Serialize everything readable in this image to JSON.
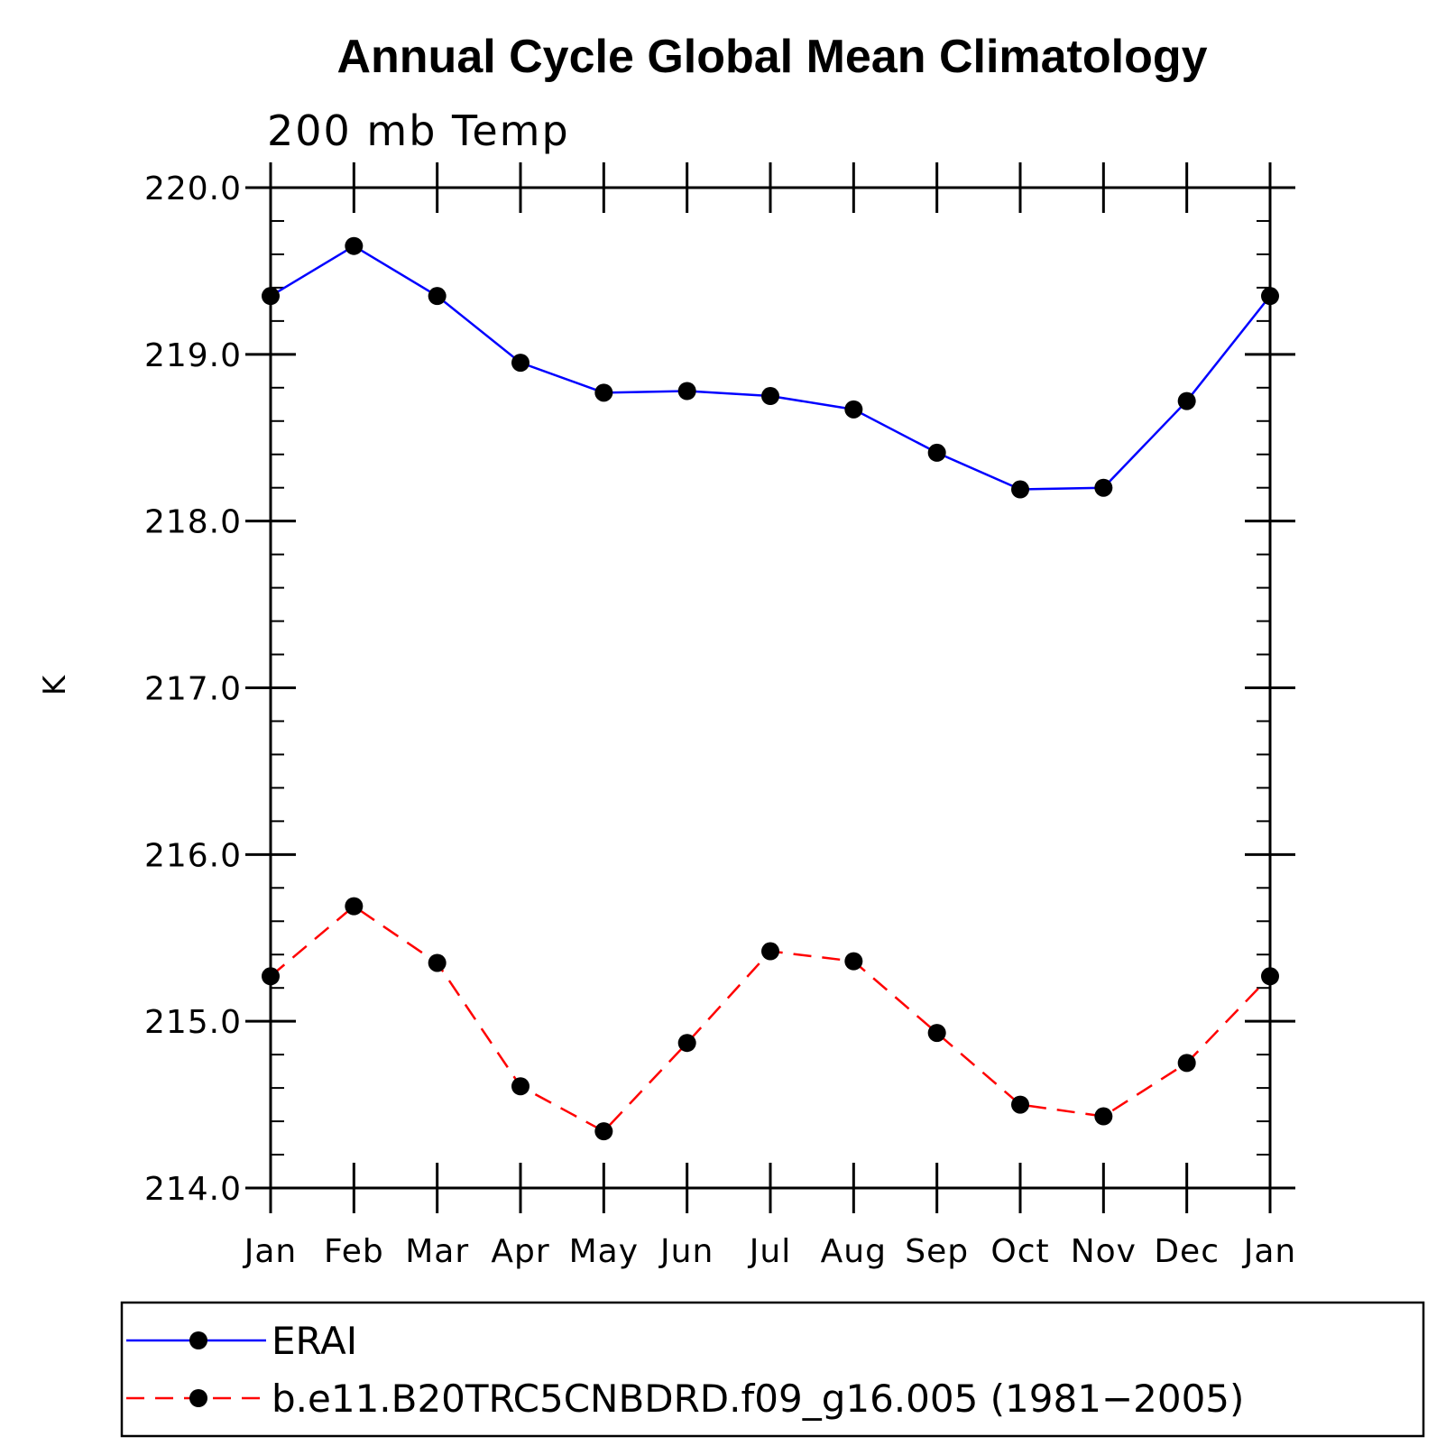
{
  "chart_data": {
    "type": "line",
    "title": "Annual Cycle Global Mean Climatology",
    "subtitle": "200 mb Temp",
    "xlabel": "",
    "ylabel": "K",
    "categories": [
      "Jan",
      "Feb",
      "Mar",
      "Apr",
      "May",
      "Jun",
      "Jul",
      "Aug",
      "Sep",
      "Oct",
      "Nov",
      "Dec",
      "Jan"
    ],
    "ylim": [
      214.0,
      220.0
    ],
    "yticks": [
      "214.0",
      "215.0",
      "216.0",
      "217.0",
      "218.0",
      "219.0",
      "220.0"
    ],
    "yminor_step": 0.2,
    "grid": false,
    "legend_position": "bottom",
    "series": [
      {
        "name": "ERAI",
        "color": "#0000ff",
        "dash": "solid",
        "values": [
          219.35,
          219.65,
          219.35,
          218.95,
          218.77,
          218.78,
          218.75,
          218.67,
          218.41,
          218.19,
          218.2,
          218.72,
          219.35
        ]
      },
      {
        "name": "b.e11.B20TRC5CNBDRD.f09_g16.005 (1981−2005)",
        "color": "#ff0000",
        "dash": "dashed",
        "values": [
          215.27,
          215.69,
          215.35,
          214.61,
          214.34,
          214.87,
          215.42,
          215.36,
          214.93,
          214.5,
          214.43,
          214.75,
          215.27
        ]
      }
    ]
  }
}
